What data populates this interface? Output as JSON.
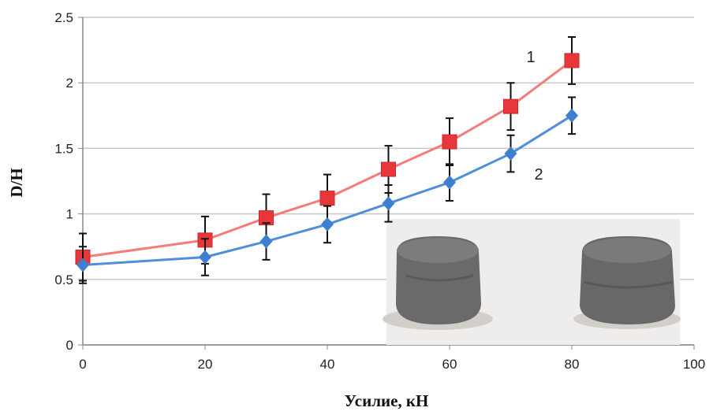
{
  "chart_data": {
    "type": "line",
    "xlabel": "Усилие, кН",
    "ylabel": "D/H",
    "x": [
      0,
      20,
      30,
      40,
      50,
      60,
      70,
      80
    ],
    "series": [
      {
        "name": "1",
        "color": "#e8373a",
        "line_color": "#f77b7b",
        "marker": "square",
        "values": [
          0.67,
          0.8,
          0.97,
          1.12,
          1.34,
          1.55,
          1.82,
          2.17
        ],
        "errors": [
          0.18,
          0.18,
          0.18,
          0.18,
          0.18,
          0.18,
          0.18,
          0.18
        ]
      },
      {
        "name": "2",
        "color": "#3f7fd0",
        "line_color": "#4f8ed8",
        "marker": "diamond",
        "values": [
          0.61,
          0.67,
          0.79,
          0.92,
          1.08,
          1.24,
          1.46,
          1.75
        ],
        "errors": [
          0.14,
          0.14,
          0.14,
          0.14,
          0.14,
          0.14,
          0.14,
          0.14
        ]
      }
    ],
    "xlim": [
      0,
      100
    ],
    "xticks": [
      0,
      20,
      40,
      60,
      80,
      100
    ],
    "ylim": [
      0,
      2.5
    ],
    "yticks": [
      0,
      0.5,
      1,
      1.5,
      2,
      2.5
    ],
    "grid": true
  }
}
